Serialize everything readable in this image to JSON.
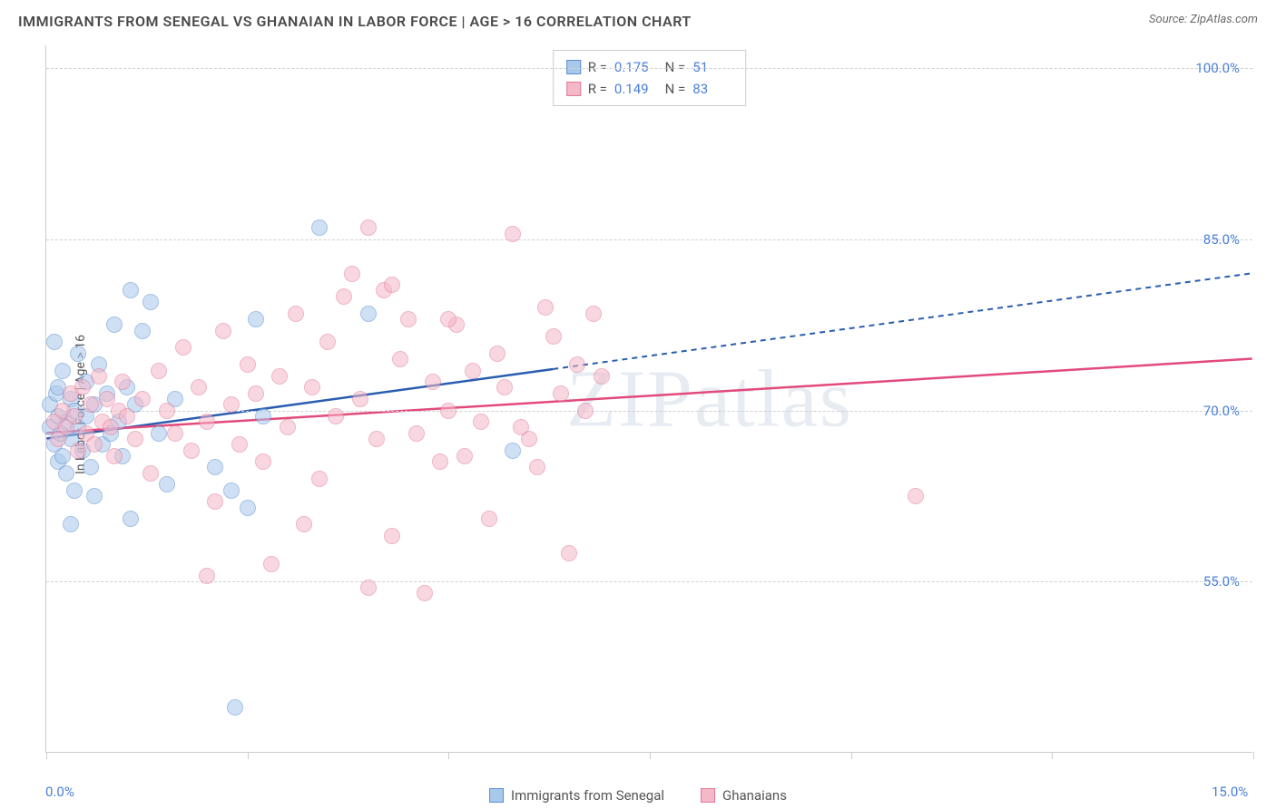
{
  "header": {
    "title": "IMMIGRANTS FROM SENEGAL VS GHANAIAN IN LABOR FORCE | AGE > 16 CORRELATION CHART",
    "source": "Source: ZipAtlas.com"
  },
  "watermark": "ZIPatlas",
  "chart": {
    "type": "scatter",
    "ylabel": "In Labor Force | Age > 16",
    "xlim": [
      0,
      15
    ],
    "ylim": [
      40,
      102
    ],
    "x_ticks": [
      0,
      2.5,
      5,
      7.5,
      10,
      12.5,
      15
    ],
    "x_tick_labels": {
      "0": "0.0%",
      "15": "15.0%"
    },
    "y_gridlines": [
      55,
      70,
      85,
      100
    ],
    "y_tick_labels": {
      "55": "55.0%",
      "70": "70.0%",
      "85": "85.0%",
      "100": "100.0%"
    },
    "y_tick_label_fontsize": 15,
    "y_tick_label_color": "#4a7fd8",
    "x_tick_label_color": "#4a7fd8",
    "grid_color": "#d0d0d0",
    "axis_color": "#cccccc",
    "background_color": "#ffffff",
    "ylabel_fontsize": 14,
    "point_radius": 9,
    "point_opacity": 0.55,
    "series": [
      {
        "name": "Immigrants from Senegal",
        "color_fill": "#a8c8ec",
        "color_stroke": "#5b8fd0",
        "trend_color": "#2a5db0",
        "trend_solid_until_x": 6.3,
        "trend": {
          "x1": 0,
          "y1": 67.5,
          "x2": 15,
          "y2": 82.0
        },
        "stats": {
          "R": "0.175",
          "N": "51"
        },
        "points": [
          [
            0.05,
            68.5
          ],
          [
            0.05,
            70.5
          ],
          [
            0.1,
            67.0
          ],
          [
            0.1,
            76.0
          ],
          [
            0.12,
            71.5
          ],
          [
            0.15,
            65.5
          ],
          [
            0.15,
            72.0
          ],
          [
            0.18,
            68.0
          ],
          [
            0.2,
            66.0
          ],
          [
            0.2,
            73.5
          ],
          [
            0.25,
            69.0
          ],
          [
            0.25,
            64.5
          ],
          [
            0.3,
            71.0
          ],
          [
            0.3,
            67.5
          ],
          [
            0.35,
            63.0
          ],
          [
            0.35,
            70.0
          ],
          [
            0.4,
            68.5
          ],
          [
            0.4,
            75.0
          ],
          [
            0.45,
            66.5
          ],
          [
            0.5,
            69.5
          ],
          [
            0.5,
            72.5
          ],
          [
            0.55,
            65.0
          ],
          [
            0.6,
            70.5
          ],
          [
            0.6,
            62.5
          ],
          [
            0.65,
            74.0
          ],
          [
            0.7,
            67.0
          ],
          [
            0.75,
            71.5
          ],
          [
            0.8,
            68.0
          ],
          [
            0.85,
            77.5
          ],
          [
            0.9,
            69.0
          ],
          [
            0.95,
            66.0
          ],
          [
            1.0,
            72.0
          ],
          [
            1.05,
            80.5
          ],
          [
            1.1,
            70.5
          ],
          [
            1.2,
            77.0
          ],
          [
            1.3,
            79.5
          ],
          [
            1.4,
            68.0
          ],
          [
            1.5,
            63.5
          ],
          [
            1.6,
            71.0
          ],
          [
            1.05,
            60.5
          ],
          [
            2.1,
            65.0
          ],
          [
            2.3,
            63.0
          ],
          [
            2.5,
            61.5
          ],
          [
            2.6,
            78.0
          ],
          [
            2.7,
            69.5
          ],
          [
            3.4,
            86.0
          ],
          [
            4.0,
            78.5
          ],
          [
            5.8,
            66.5
          ],
          [
            2.35,
            44.0
          ],
          [
            0.3,
            60.0
          ],
          [
            0.15,
            69.5
          ]
        ]
      },
      {
        "name": "Ghanaians",
        "color_fill": "#f5b8c8",
        "color_stroke": "#e07a9a",
        "trend_color": "#e24a7a",
        "trend_solid_until_x": 15,
        "trend": {
          "x1": 0,
          "y1": 68.0,
          "x2": 15,
          "y2": 74.5
        },
        "stats": {
          "R": "0.149",
          "N": "83"
        },
        "points": [
          [
            0.1,
            69.0
          ],
          [
            0.15,
            67.5
          ],
          [
            0.2,
            70.0
          ],
          [
            0.25,
            68.5
          ],
          [
            0.3,
            71.5
          ],
          [
            0.35,
            69.5
          ],
          [
            0.4,
            66.5
          ],
          [
            0.45,
            72.0
          ],
          [
            0.5,
            68.0
          ],
          [
            0.55,
            70.5
          ],
          [
            0.6,
            67.0
          ],
          [
            0.65,
            73.0
          ],
          [
            0.7,
            69.0
          ],
          [
            0.75,
            71.0
          ],
          [
            0.8,
            68.5
          ],
          [
            0.85,
            66.0
          ],
          [
            0.9,
            70.0
          ],
          [
            0.95,
            72.5
          ],
          [
            1.0,
            69.5
          ],
          [
            1.1,
            67.5
          ],
          [
            1.2,
            71.0
          ],
          [
            1.3,
            64.5
          ],
          [
            1.4,
            73.5
          ],
          [
            1.5,
            70.0
          ],
          [
            1.6,
            68.0
          ],
          [
            1.7,
            75.5
          ],
          [
            1.8,
            66.5
          ],
          [
            1.9,
            72.0
          ],
          [
            2.0,
            69.0
          ],
          [
            2.1,
            62.0
          ],
          [
            2.2,
            77.0
          ],
          [
            2.3,
            70.5
          ],
          [
            2.4,
            67.0
          ],
          [
            2.5,
            74.0
          ],
          [
            2.6,
            71.5
          ],
          [
            2.7,
            65.5
          ],
          [
            2.8,
            56.5
          ],
          [
            2.9,
            73.0
          ],
          [
            3.0,
            68.5
          ],
          [
            3.1,
            78.5
          ],
          [
            3.2,
            60.0
          ],
          [
            3.3,
            72.0
          ],
          [
            3.4,
            64.0
          ],
          [
            3.5,
            76.0
          ],
          [
            3.6,
            69.5
          ],
          [
            3.7,
            80.0
          ],
          [
            2.0,
            55.5
          ],
          [
            3.9,
            71.0
          ],
          [
            4.0,
            86.0
          ],
          [
            4.1,
            67.5
          ],
          [
            4.2,
            80.5
          ],
          [
            4.3,
            59.0
          ],
          [
            4.4,
            74.5
          ],
          [
            4.5,
            78.0
          ],
          [
            4.6,
            68.0
          ],
          [
            4.7,
            54.0
          ],
          [
            4.8,
            72.5
          ],
          [
            4.0,
            54.5
          ],
          [
            5.0,
            70.0
          ],
          [
            5.1,
            77.5
          ],
          [
            5.2,
            66.0
          ],
          [
            5.3,
            73.5
          ],
          [
            5.4,
            69.0
          ],
          [
            5.5,
            60.5
          ],
          [
            5.6,
            75.0
          ],
          [
            5.8,
            85.5
          ],
          [
            6.0,
            67.5
          ],
          [
            6.2,
            79.0
          ],
          [
            6.4,
            71.5
          ],
          [
            6.6,
            74.0
          ],
          [
            6.8,
            78.5
          ],
          [
            6.5,
            57.5
          ],
          [
            5.9,
            68.5
          ],
          [
            6.3,
            76.5
          ],
          [
            6.7,
            70.0
          ],
          [
            6.9,
            73.0
          ],
          [
            6.1,
            65.0
          ],
          [
            5.7,
            72.0
          ],
          [
            5.0,
            78.0
          ],
          [
            4.9,
            65.5
          ],
          [
            10.8,
            62.5
          ],
          [
            3.8,
            82.0
          ],
          [
            4.3,
            81.0
          ]
        ]
      }
    ]
  },
  "stats_box": {
    "rows": [
      {
        "swatch_fill": "#a8c8ec",
        "swatch_stroke": "#5b8fd0",
        "r_label": "R =",
        "r_val": "0.175",
        "n_label": "N =",
        "n_val": "51"
      },
      {
        "swatch_fill": "#f5b8c8",
        "swatch_stroke": "#e07a9a",
        "r_label": "R =",
        "r_val": "0.149",
        "n_label": "N =",
        "n_val": "83"
      }
    ]
  },
  "legend": [
    {
      "swatch_fill": "#a8c8ec",
      "swatch_stroke": "#5b8fd0",
      "label": "Immigrants from Senegal"
    },
    {
      "swatch_fill": "#f5b8c8",
      "swatch_stroke": "#e07a9a",
      "label": "Ghanaians"
    }
  ]
}
